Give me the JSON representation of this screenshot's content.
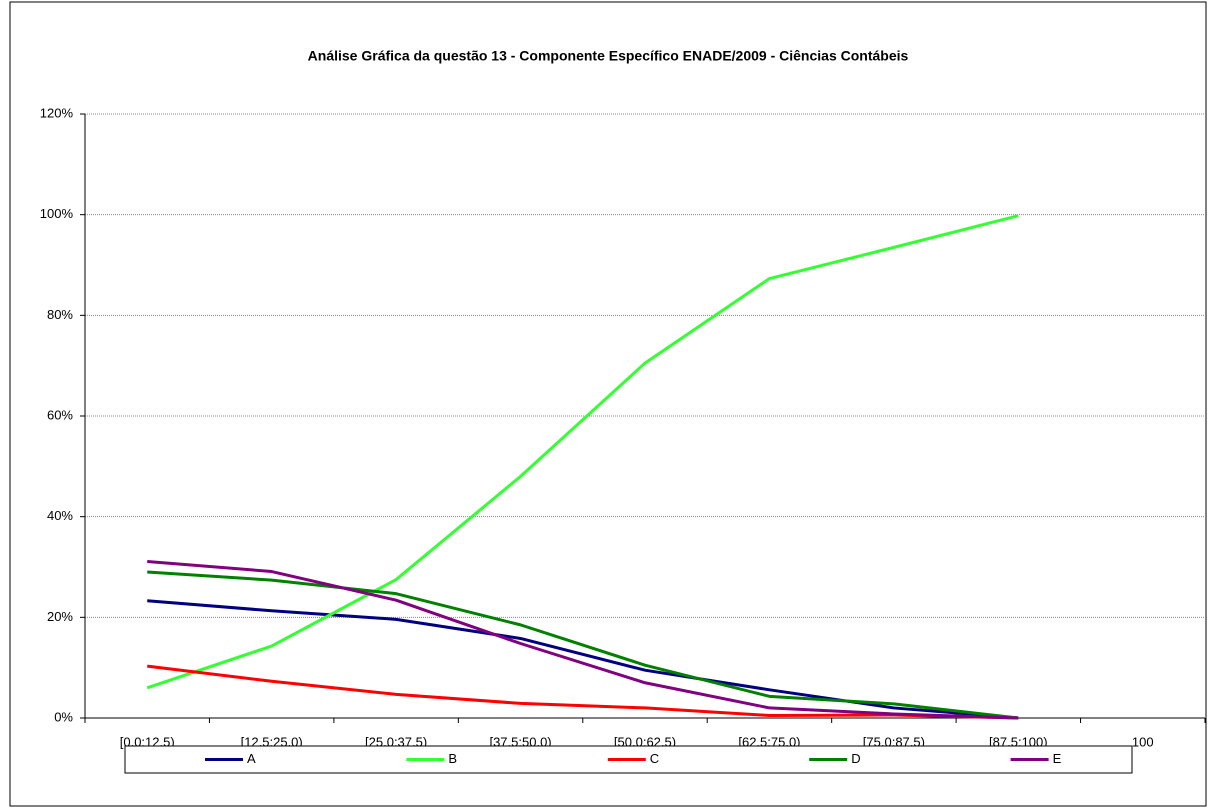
{
  "chart_data": {
    "type": "line",
    "title": "Análise Gráfica da questão 13 - Componente Específico ENADE/2009 - Ciências Contábeis",
    "categories": [
      "[0,0;12,5)",
      "[12,5;25,0)",
      "[25,0;37,5)",
      "[37,5;50,0)",
      "[50,0;62,5)",
      "[62,5;75,0)",
      "[75,0;87,5)",
      "[87,5;100)",
      "100"
    ],
    "series": [
      {
        "name": "A",
        "color": "#000080",
        "values": [
          23.3,
          21.3,
          19.6,
          15.8,
          9.5,
          5.6,
          2.0,
          0,
          null
        ]
      },
      {
        "name": "B",
        "color": "#33ff33",
        "values": [
          6.0,
          14.3,
          27.5,
          48.0,
          70.5,
          87.3,
          93.5,
          99.8,
          null
        ]
      },
      {
        "name": "C",
        "color": "#ff0000",
        "values": [
          10.3,
          7.3,
          4.7,
          2.9,
          2.0,
          0.5,
          0.6,
          0,
          null
        ]
      },
      {
        "name": "D",
        "color": "#008000",
        "values": [
          29.0,
          27.4,
          24.7,
          18.5,
          10.5,
          4.3,
          2.8,
          0,
          null
        ]
      },
      {
        "name": "E",
        "color": "#800080",
        "values": [
          31.1,
          29.1,
          23.4,
          14.8,
          7.0,
          2.0,
          0.8,
          0,
          null
        ]
      }
    ],
    "ylim": [
      0,
      120
    ],
    "yticks": [
      {
        "value": 0,
        "label": "0%"
      },
      {
        "value": 20,
        "label": "20%"
      },
      {
        "value": 40,
        "label": "40%"
      },
      {
        "value": 60,
        "label": "60%"
      },
      {
        "value": 80,
        "label": "80%"
      },
      {
        "value": 100,
        "label": "100%"
      },
      {
        "value": 120,
        "label": "120%"
      }
    ],
    "grid": true,
    "legend": "bottom"
  }
}
